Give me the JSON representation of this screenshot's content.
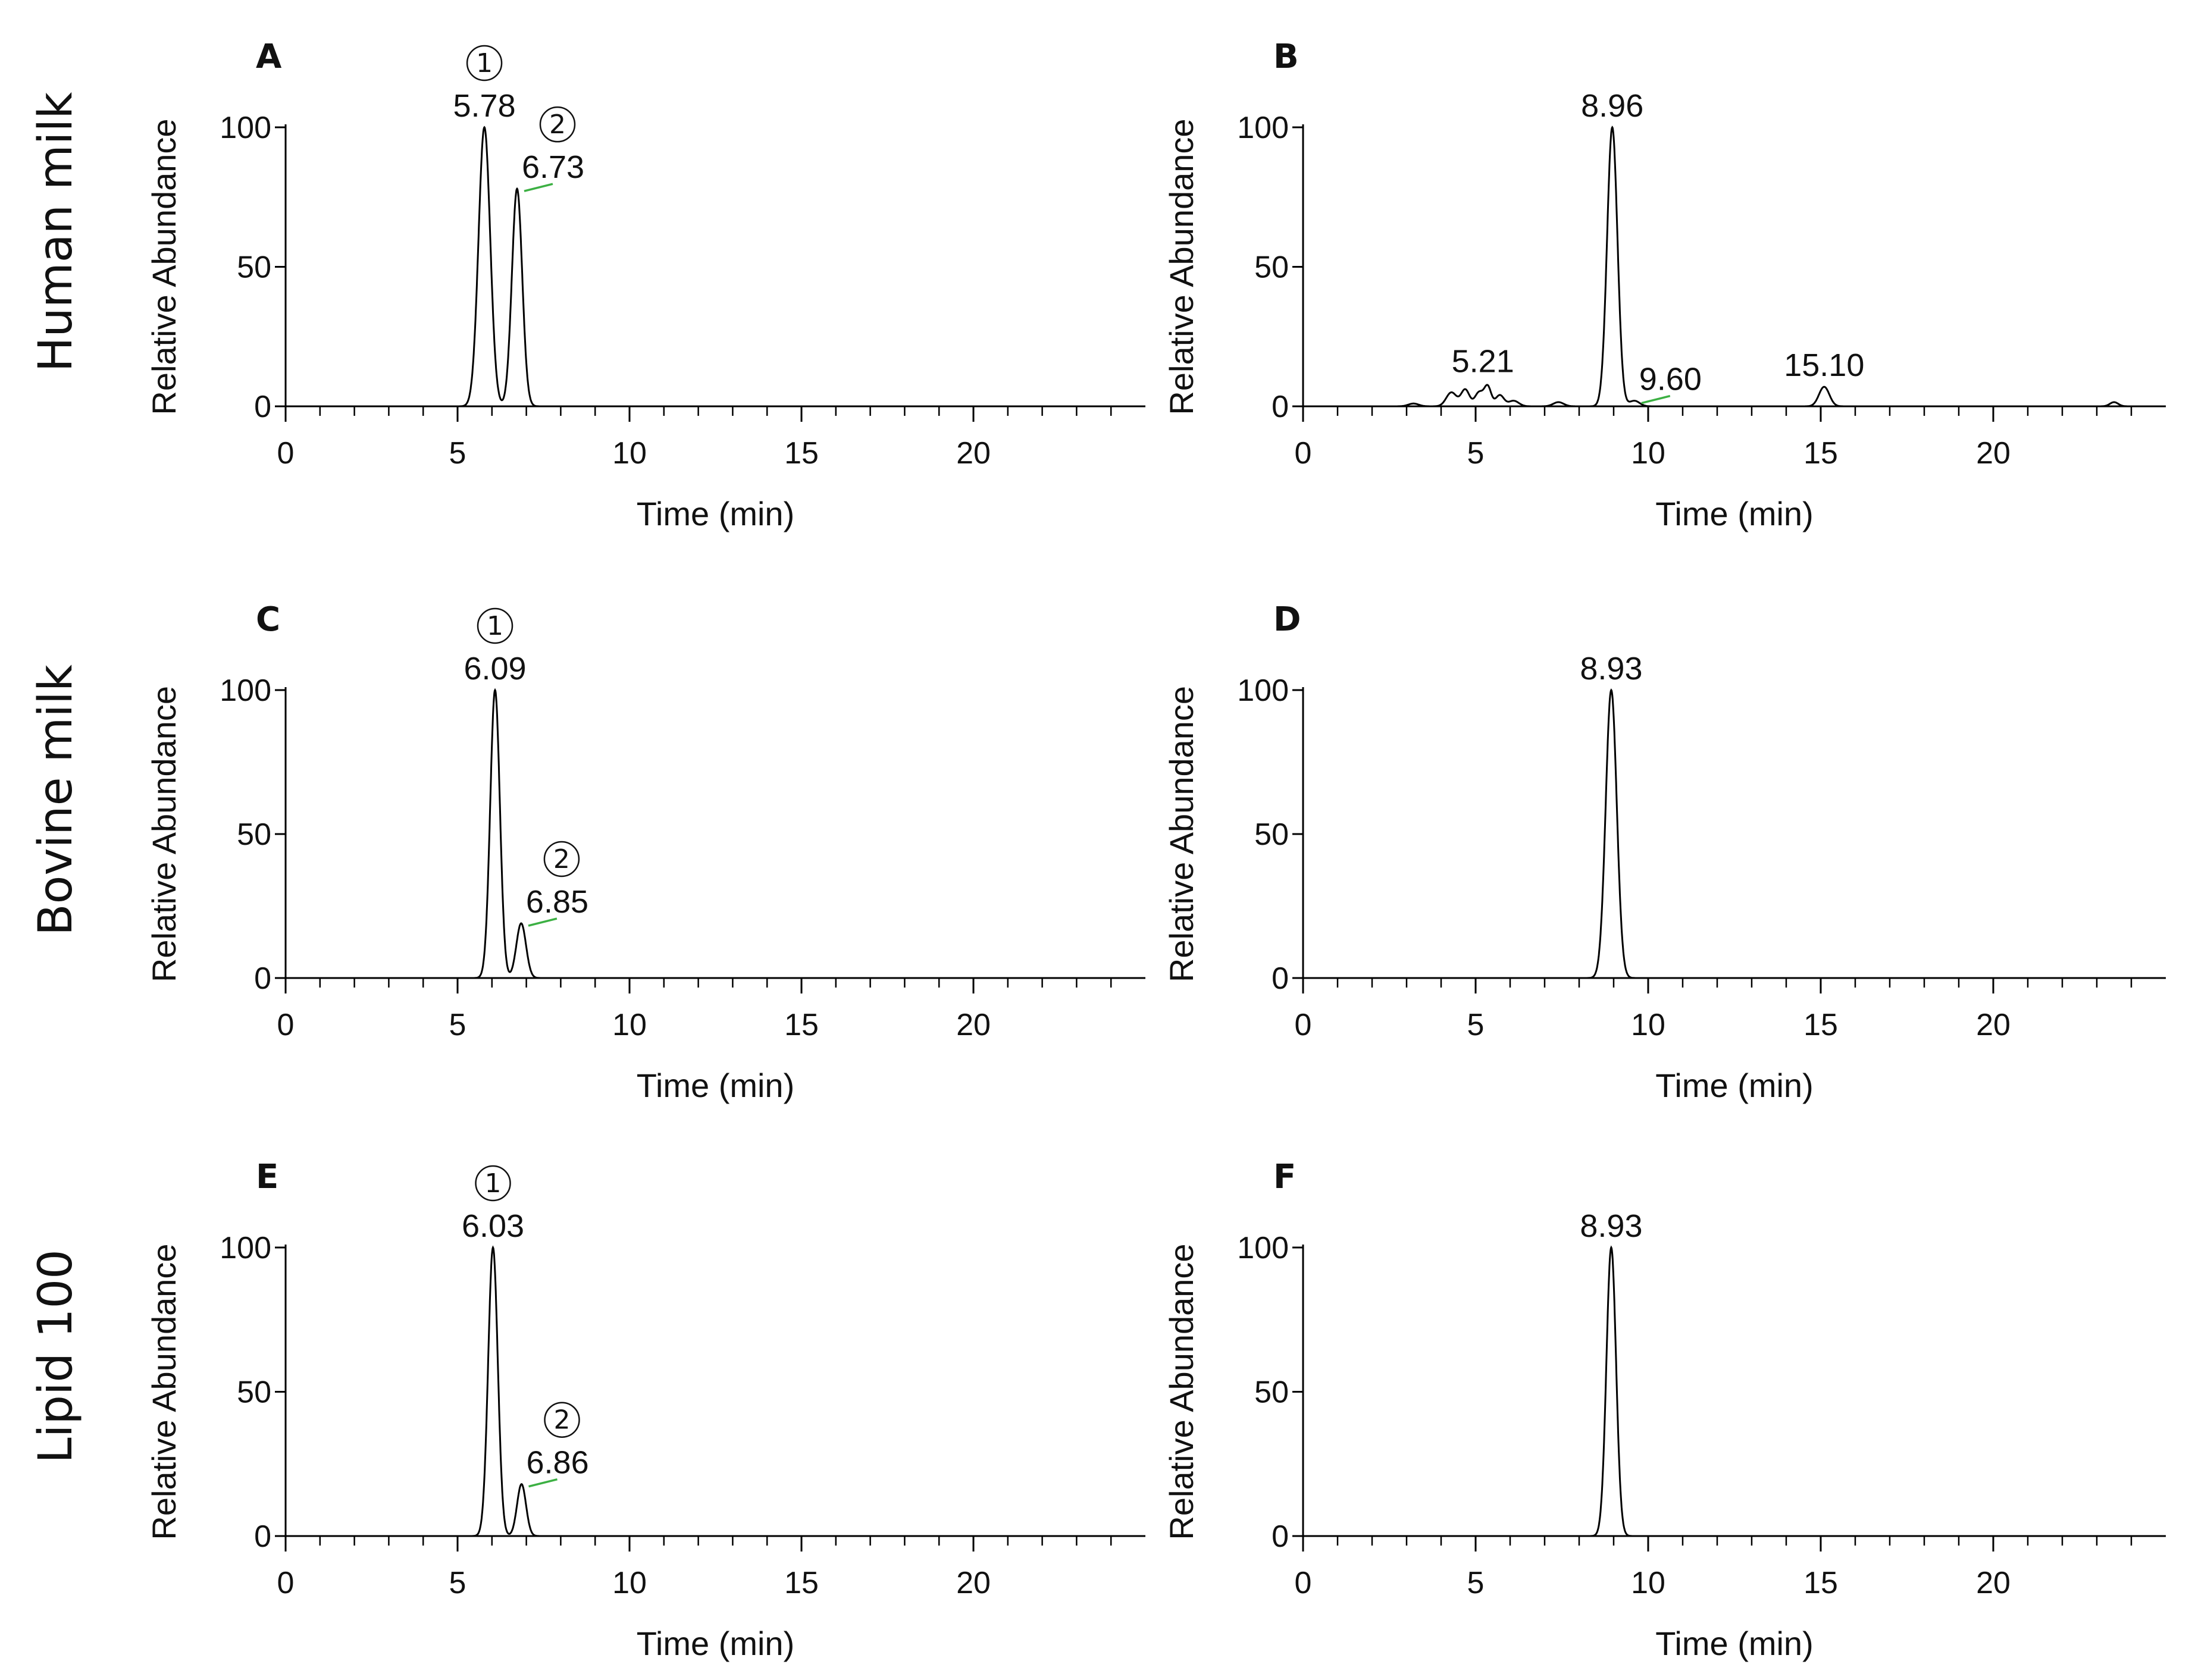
{
  "row_labels": [
    "Human milk",
    "Bovine milk",
    "Lipid 100"
  ],
  "chart_data": [
    {
      "type": "line",
      "panel": "A",
      "row": 0,
      "col": 0,
      "xlabel": "Time (min)",
      "ylabel": "Relative Abundance",
      "xlim": [
        0,
        25
      ],
      "ylim": [
        0,
        100
      ],
      "xticks": [
        0,
        5,
        10,
        15,
        20
      ],
      "yticks": [
        0,
        50,
        100
      ],
      "trace_end": 25,
      "peaks": [
        {
          "rt": 5.78,
          "height": 100,
          "width": 0.17,
          "label": "5.78",
          "marker": "1"
        },
        {
          "rt": 6.73,
          "height": 78,
          "width": 0.15,
          "label": "6.73",
          "marker": "2",
          "integration_line": true
        }
      ],
      "noise": []
    },
    {
      "type": "line",
      "panel": "B",
      "row": 0,
      "col": 1,
      "xlabel": "Time (min)",
      "ylabel": "Relative Abundance",
      "xlim": [
        0,
        25
      ],
      "ylim": [
        0,
        100
      ],
      "xticks": [
        0,
        5,
        10,
        15,
        20
      ],
      "yticks": [
        0,
        50,
        100
      ],
      "trace_end": 25,
      "peaks": [
        {
          "rt": 8.96,
          "height": 100,
          "width": 0.15,
          "label": "8.96"
        },
        {
          "rt": 9.6,
          "height": 2,
          "width": 0.15,
          "label": "9.60",
          "integration_line": true
        },
        {
          "rt": 15.1,
          "height": 7,
          "width": 0.15,
          "label": "15.10"
        }
      ],
      "noise": [
        {
          "rt": 4.3,
          "height": 5,
          "width": 0.15
        },
        {
          "rt": 4.7,
          "height": 6,
          "width": 0.12
        },
        {
          "rt": 5.1,
          "height": 5,
          "width": 0.12
        },
        {
          "rt": 5.35,
          "height": 7,
          "width": 0.1
        },
        {
          "rt": 5.7,
          "height": 4,
          "width": 0.12
        },
        {
          "rt": 6.1,
          "height": 2,
          "width": 0.15
        },
        {
          "rt": 7.4,
          "height": 1.5,
          "width": 0.15
        },
        {
          "rt": 3.2,
          "height": 1,
          "width": 0.15
        },
        {
          "rt": 23.5,
          "height": 1.5,
          "width": 0.12
        }
      ],
      "peak_label_positions": {
        "5.21": 5.21
      }
    },
    {
      "type": "line",
      "panel": "C",
      "row": 1,
      "col": 0,
      "xlabel": "Time (min)",
      "ylabel": "Relative Abundance",
      "xlim": [
        0,
        25
      ],
      "ylim": [
        0,
        100
      ],
      "xticks": [
        0,
        5,
        10,
        15,
        20
      ],
      "yticks": [
        0,
        50,
        100
      ],
      "trace_end": 25,
      "peaks": [
        {
          "rt": 6.09,
          "height": 100,
          "width": 0.14,
          "label": "6.09",
          "marker": "1"
        },
        {
          "rt": 6.85,
          "height": 19,
          "width": 0.14,
          "label": "6.85",
          "marker": "2",
          "integration_line": true
        }
      ],
      "noise": []
    },
    {
      "type": "line",
      "panel": "D",
      "row": 1,
      "col": 1,
      "xlabel": "Time (min)",
      "ylabel": "Relative Abundance",
      "xlim": [
        0,
        25
      ],
      "ylim": [
        0,
        100
      ],
      "xticks": [
        0,
        5,
        10,
        15,
        20
      ],
      "yticks": [
        0,
        50,
        100
      ],
      "trace_end": 25,
      "peaks": [
        {
          "rt": 8.93,
          "height": 100,
          "width": 0.16,
          "label": "8.93"
        }
      ],
      "noise": []
    },
    {
      "type": "line",
      "panel": "E",
      "row": 2,
      "col": 0,
      "xlabel": "Time (min)",
      "ylabel": "Relative Abundance",
      "xlim": [
        0,
        25
      ],
      "ylim": [
        0,
        100
      ],
      "xticks": [
        0,
        5,
        10,
        15,
        20
      ],
      "yticks": [
        0,
        50,
        100
      ],
      "trace_end": 25,
      "peaks": [
        {
          "rt": 6.03,
          "height": 100,
          "width": 0.14,
          "label": "6.03",
          "marker": "1"
        },
        {
          "rt": 6.86,
          "height": 18,
          "width": 0.13,
          "label": "6.86",
          "marker": "2",
          "integration_line": true
        }
      ],
      "noise": []
    },
    {
      "type": "line",
      "panel": "F",
      "row": 2,
      "col": 1,
      "xlabel": "Time (min)",
      "ylabel": "Relative Abundance",
      "xlim": [
        0,
        25
      ],
      "ylim": [
        0,
        100
      ],
      "xticks": [
        0,
        5,
        10,
        15,
        20
      ],
      "yticks": [
        0,
        50,
        100
      ],
      "trace_end": 11.3,
      "peaks": [
        {
          "rt": 8.93,
          "height": 100,
          "width": 0.14,
          "label": "8.93"
        }
      ],
      "noise": []
    }
  ],
  "colors": {
    "trace": "#000000",
    "axis": "#000000",
    "integration": "#3cb043"
  },
  "marker_symbols": {
    "1": "①",
    "2": "②"
  }
}
